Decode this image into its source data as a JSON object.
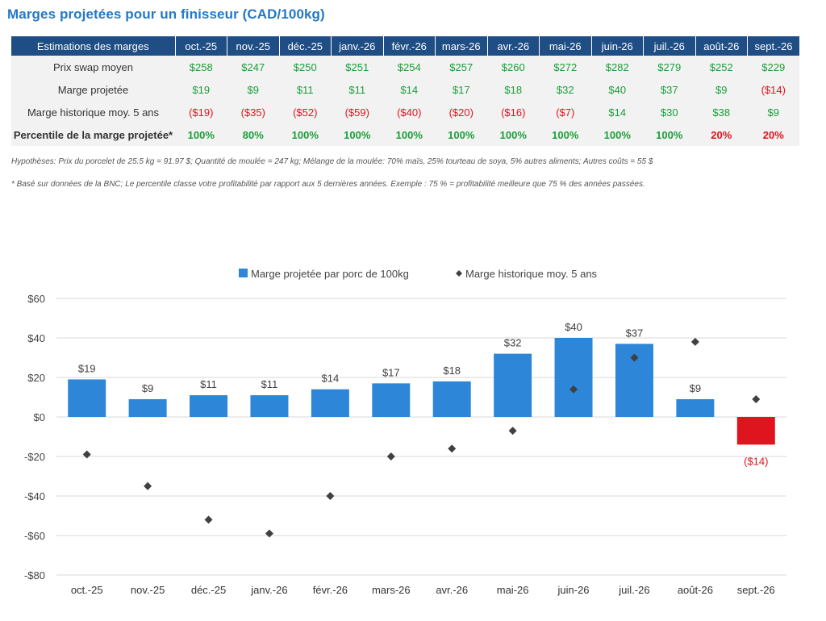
{
  "title": "Marges projetées pour un finisseur (CAD/100kg)",
  "colors": {
    "header_bg": "#1f4e85",
    "accent": "#2478c5",
    "positive": "#1a9e3a",
    "negative": "#e0141e",
    "bar": "#2e86d8",
    "bar_negative": "#e0141e",
    "marker": "#404040"
  },
  "table": {
    "corner_label": "Estimations des marges",
    "months": [
      "oct.-25",
      "nov.-25",
      "déc.-25",
      "janv.-26",
      "févr.-26",
      "mars-26",
      "avr.-26",
      "mai-26",
      "juin-26",
      "juil.-26",
      "août-26",
      "sept.-26"
    ],
    "rows": [
      {
        "label": "Prix swap moyen",
        "cells": [
          {
            "text": "$258",
            "tone": "pos"
          },
          {
            "text": "$247",
            "tone": "pos"
          },
          {
            "text": "$250",
            "tone": "pos"
          },
          {
            "text": "$251",
            "tone": "pos"
          },
          {
            "text": "$254",
            "tone": "pos"
          },
          {
            "text": "$257",
            "tone": "pos"
          },
          {
            "text": "$260",
            "tone": "pos"
          },
          {
            "text": "$272",
            "tone": "pos"
          },
          {
            "text": "$282",
            "tone": "pos"
          },
          {
            "text": "$279",
            "tone": "pos"
          },
          {
            "text": "$252",
            "tone": "pos"
          },
          {
            "text": "$229",
            "tone": "pos"
          }
        ]
      },
      {
        "label": "Marge projetée",
        "cells": [
          {
            "text": "$19",
            "tone": "pos"
          },
          {
            "text": "$9",
            "tone": "pos"
          },
          {
            "text": "$11",
            "tone": "pos"
          },
          {
            "text": "$11",
            "tone": "pos"
          },
          {
            "text": "$14",
            "tone": "pos"
          },
          {
            "text": "$17",
            "tone": "pos"
          },
          {
            "text": "$18",
            "tone": "pos"
          },
          {
            "text": "$32",
            "tone": "pos"
          },
          {
            "text": "$40",
            "tone": "pos"
          },
          {
            "text": "$37",
            "tone": "pos"
          },
          {
            "text": "$9",
            "tone": "pos"
          },
          {
            "text": "($14)",
            "tone": "neg"
          }
        ]
      },
      {
        "label": "Marge historique moy. 5 ans",
        "cells": [
          {
            "text": "($19)",
            "tone": "neg"
          },
          {
            "text": "($35)",
            "tone": "neg"
          },
          {
            "text": "($52)",
            "tone": "neg"
          },
          {
            "text": "($59)",
            "tone": "neg"
          },
          {
            "text": "($40)",
            "tone": "neg"
          },
          {
            "text": "($20)",
            "tone": "neg"
          },
          {
            "text": "($16)",
            "tone": "neg"
          },
          {
            "text": "($7)",
            "tone": "neg"
          },
          {
            "text": "$14",
            "tone": "pos"
          },
          {
            "text": "$30",
            "tone": "pos"
          },
          {
            "text": "$38",
            "tone": "pos"
          },
          {
            "text": "$9",
            "tone": "pos"
          }
        ]
      },
      {
        "label": "Percentile de la marge projetée*",
        "cells": [
          {
            "text": "100%",
            "tone": "pos"
          },
          {
            "text": "80%",
            "tone": "pos"
          },
          {
            "text": "100%",
            "tone": "pos"
          },
          {
            "text": "100%",
            "tone": "pos"
          },
          {
            "text": "100%",
            "tone": "pos"
          },
          {
            "text": "100%",
            "tone": "pos"
          },
          {
            "text": "100%",
            "tone": "pos"
          },
          {
            "text": "100%",
            "tone": "pos"
          },
          {
            "text": "100%",
            "tone": "pos"
          },
          {
            "text": "100%",
            "tone": "pos"
          },
          {
            "text": "20%",
            "tone": "neg"
          },
          {
            "text": "20%",
            "tone": "neg"
          }
        ]
      }
    ]
  },
  "notes": {
    "hypotheses": "Hypothèses: Prix du porcelet de 25.5 kg = 91.97 $; Quantité de moulée = 247 kg; Mélange de la moulée: 70% maïs, 25% tourteau de soya, 5% autres aliments; Autres coûts = 55 $",
    "footnote": "* Basé sur données de la BNC; Le percentile classe votre profitabilité par rapport aux 5 dernières années. Exemple : 75 % = profitabilité meilleure que 75 % des années passées."
  },
  "chart_data": {
    "type": "bar",
    "categories": [
      "oct.-25",
      "nov.-25",
      "déc.-25",
      "janv.-26",
      "févr.-26",
      "mars-26",
      "avr.-26",
      "mai-26",
      "juin-26",
      "juil.-26",
      "août-26",
      "sept.-26"
    ],
    "series": [
      {
        "name": "Marge projetée par porc de 100kg",
        "kind": "bar",
        "values": [
          19,
          9,
          11,
          11,
          14,
          17,
          18,
          32,
          40,
          37,
          9,
          -14
        ],
        "labels": [
          "$19",
          "$9",
          "$11",
          "$11",
          "$14",
          "$17",
          "$18",
          "$32",
          "$40",
          "$37",
          "$9",
          "($14)"
        ]
      },
      {
        "name": "Marge historique moy. 5 ans",
        "kind": "marker",
        "values": [
          -19,
          -35,
          -52,
          -59,
          -40,
          -20,
          -16,
          -7,
          14,
          30,
          38,
          9
        ]
      }
    ],
    "ylim": [
      -80,
      60
    ],
    "yticks": [
      60,
      40,
      20,
      0,
      -20,
      -40,
      -60,
      -80
    ],
    "ytick_labels": [
      "$60",
      "$40",
      "$20",
      "$0",
      "-$20",
      "-$40",
      "-$60",
      "-$80"
    ],
    "grid": true,
    "legend": "top-center"
  }
}
